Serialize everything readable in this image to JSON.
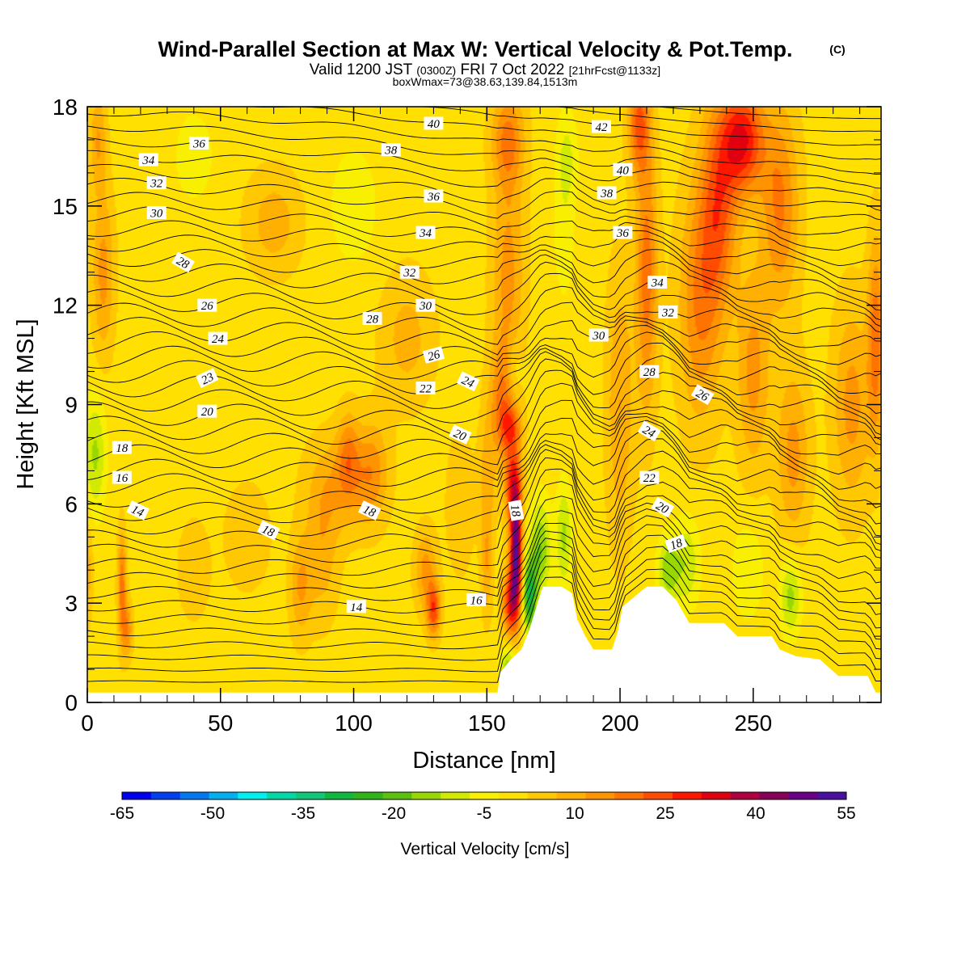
{
  "header": {
    "title": "Wind-Parallel Section at Max W: Vertical Velocity & Pot.Temp.",
    "copyright": "(C)",
    "valid_prefix": "Valid 1200 JST",
    "valid_utc": "(0300Z)",
    "valid_date": "FRI 7 Oct 2022",
    "forecast": "[21hrFcst@1133z]",
    "box_wmax": "boxWmax=73@38.63,139.84,1513m"
  },
  "chart_data": {
    "type": "heatmap",
    "title": "Wind-Parallel Section at Max W: Vertical Velocity & Pot.Temp.",
    "xlabel": "Distance [nm]",
    "ylabel": "Height [Kft MSL]",
    "xlim": [
      0,
      298
    ],
    "ylim": [
      0,
      18
    ],
    "x_ticks": [
      "0",
      "50",
      "100",
      "150",
      "200",
      "250"
    ],
    "y_ticks": [
      "0",
      "3",
      "6",
      "9",
      "12",
      "15",
      "18"
    ],
    "colorbar": {
      "label": "Vertical Velocity [cm/s]",
      "tick_labels": [
        "-65",
        "-50",
        "-35",
        "-20",
        "-5",
        "10",
        "25",
        "40",
        "55"
      ],
      "levels": [
        -65,
        -60,
        -55,
        -50,
        -45,
        -40,
        -35,
        -30,
        -25,
        -20,
        -15,
        -10,
        -5,
        0,
        5,
        10,
        15,
        20,
        25,
        30,
        35,
        40,
        45,
        50,
        55
      ],
      "colors": [
        "#0000f0",
        "#0040f0",
        "#0078f0",
        "#00b0f0",
        "#00f0f0",
        "#00d8a8",
        "#10c878",
        "#10b840",
        "#30b418",
        "#5cc010",
        "#98d800",
        "#d2ea00",
        "#f8f000",
        "#ffe000",
        "#ffc800",
        "#ffb000",
        "#ff9400",
        "#ff7400",
        "#ff4c00",
        "#ff1800",
        "#e00010",
        "#b00040",
        "#880058",
        "#6a0088",
        "#4a10a0"
      ]
    },
    "terrain": [
      [
        0,
        0.3
      ],
      [
        154,
        0.3
      ],
      [
        155,
        0.9
      ],
      [
        159,
        1.3
      ],
      [
        163,
        1.6
      ],
      [
        166,
        2.2
      ],
      [
        169,
        3.0
      ],
      [
        171,
        3.5
      ],
      [
        178,
        3.5
      ],
      [
        182,
        3.3
      ],
      [
        184,
        2.5
      ],
      [
        187,
        2.0
      ],
      [
        190,
        1.6
      ],
      [
        193,
        1.6
      ],
      [
        197,
        1.6
      ],
      [
        199,
        2.1
      ],
      [
        201,
        2.9
      ],
      [
        210,
        3.5
      ],
      [
        216,
        3.5
      ],
      [
        221,
        3.1
      ],
      [
        226,
        2.4
      ],
      [
        239,
        2.4
      ],
      [
        244,
        2.0
      ],
      [
        257,
        2.0
      ],
      [
        260,
        1.6
      ],
      [
        266,
        1.4
      ],
      [
        275,
        1.3
      ],
      [
        282,
        0.8
      ],
      [
        293,
        0.8
      ],
      [
        296,
        0.3
      ],
      [
        298,
        0.3
      ]
    ],
    "w_features": [
      {
        "x": 161,
        "y": 4.5,
        "w": 50,
        "sx": 2.2,
        "sy": 1.6
      },
      {
        "x": 160,
        "y": 6.5,
        "w": 30,
        "sx": 3,
        "sy": 1.2
      },
      {
        "x": 166,
        "y": 3.2,
        "w": -30,
        "sx": 2.5,
        "sy": 1.1
      },
      {
        "x": 170,
        "y": 4.6,
        "w": -18,
        "sx": 4,
        "sy": 1.5
      },
      {
        "x": 179,
        "y": 5,
        "w": -14,
        "sx": 3,
        "sy": 1.6
      },
      {
        "x": 156,
        "y": 9,
        "w": 18,
        "sx": 5,
        "sy": 1.8
      },
      {
        "x": 158,
        "y": 13,
        "w": 14,
        "sx": 6,
        "sy": 3
      },
      {
        "x": 158,
        "y": 17,
        "w": 18,
        "sx": 6,
        "sy": 1.5
      },
      {
        "x": 159,
        "y": 3,
        "w": 30,
        "sx": 3,
        "sy": 1
      },
      {
        "x": 158,
        "y": 1.1,
        "w": -16,
        "sx": 3,
        "sy": 0.6
      },
      {
        "x": 159,
        "y": 8.3,
        "w": 16,
        "sx": 4,
        "sy": 0.7
      },
      {
        "x": 160,
        "y": 10,
        "w": -8,
        "sx": 3,
        "sy": 1
      },
      {
        "x": 210,
        "y": 13,
        "w": 20,
        "sx": 4,
        "sy": 4
      },
      {
        "x": 207,
        "y": 17.5,
        "w": 22,
        "sx": 4,
        "sy": 1.5
      },
      {
        "x": 246,
        "y": 17,
        "w": 32,
        "sx": 8,
        "sy": 1.6
      },
      {
        "x": 237,
        "y": 15,
        "w": 22,
        "sx": 7,
        "sy": 3
      },
      {
        "x": 230,
        "y": 12,
        "w": 17,
        "sx": 8,
        "sy": 3.5
      },
      {
        "x": 260,
        "y": 15,
        "w": 18,
        "sx": 7,
        "sy": 3
      },
      {
        "x": 250,
        "y": 10,
        "w": 14,
        "sx": 6,
        "sy": 3
      },
      {
        "x": 265,
        "y": 7.5,
        "w": 14,
        "sx": 6,
        "sy": 2.5
      },
      {
        "x": 287,
        "y": 9,
        "w": 14,
        "sx": 7,
        "sy": 3
      },
      {
        "x": 296,
        "y": 11,
        "w": 20,
        "sx": 3,
        "sy": 3
      },
      {
        "x": 200,
        "y": 9,
        "w": 12,
        "sx": 5,
        "sy": 4
      },
      {
        "x": 218,
        "y": 4,
        "w": -16,
        "sx": 4,
        "sy": 1
      },
      {
        "x": 225,
        "y": 4.2,
        "w": -12,
        "sx": 5,
        "sy": 1.4
      },
      {
        "x": 264,
        "y": 3.2,
        "w": -15,
        "sx": 4,
        "sy": 1.2
      },
      {
        "x": 248,
        "y": 4,
        "w": -8,
        "sx": 6,
        "sy": 1.5
      },
      {
        "x": 180,
        "y": 16.5,
        "w": -9,
        "sx": 4,
        "sy": 1.5
      },
      {
        "x": 179,
        "y": 14,
        "w": -6,
        "sx": 4,
        "sy": 2
      },
      {
        "x": 3,
        "y": 7.5,
        "w": -14,
        "sx": 4,
        "sy": 1.8
      },
      {
        "x": 0,
        "y": 4,
        "w": 10,
        "sx": 2,
        "sy": 1.5
      },
      {
        "x": 6,
        "y": 13,
        "w": 14,
        "sx": 4,
        "sy": 2.5
      },
      {
        "x": 4,
        "y": 17,
        "w": 12,
        "sx": 3,
        "sy": 1.5
      },
      {
        "x": 13,
        "y": 3.5,
        "w": 20,
        "sx": 1.6,
        "sy": 1.6
      },
      {
        "x": 15,
        "y": 2.2,
        "w": 16,
        "sx": 2,
        "sy": 0.8
      },
      {
        "x": 130,
        "y": 2.8,
        "w": 25,
        "sx": 2.5,
        "sy": 0.8
      },
      {
        "x": 127,
        "y": 4,
        "w": 14,
        "sx": 4,
        "sy": 1.2
      },
      {
        "x": 80,
        "y": 3.5,
        "w": 12,
        "sx": 4,
        "sy": 1.5
      },
      {
        "x": 88,
        "y": 4.5,
        "w": 10,
        "sx": 6,
        "sy": 2
      },
      {
        "x": 98,
        "y": 7.5,
        "w": 13,
        "sx": 4,
        "sy": 1.3
      },
      {
        "x": 107,
        "y": 7,
        "w": 13,
        "sx": 6,
        "sy": 1.5
      },
      {
        "x": 95,
        "y": 6.6,
        "w": 11,
        "sx": 12,
        "sy": 1.5
      },
      {
        "x": 70,
        "y": 14.5,
        "w": 10,
        "sx": 10,
        "sy": 1.5
      },
      {
        "x": 120,
        "y": 11,
        "w": 9,
        "sx": 10,
        "sy": 2
      },
      {
        "x": 100,
        "y": 15,
        "w": -6,
        "sx": 10,
        "sy": 2
      },
      {
        "x": 40,
        "y": 16.5,
        "w": -6,
        "sx": 8,
        "sy": 1.5
      },
      {
        "x": 140,
        "y": 6,
        "w": 7,
        "sx": 5,
        "sy": 2
      },
      {
        "x": 150,
        "y": 6.5,
        "w": 10,
        "sx": 3,
        "sy": 2
      },
      {
        "x": 150,
        "y": 4,
        "w": 10,
        "sx": 2,
        "sy": 1.5
      },
      {
        "x": 40,
        "y": 4,
        "w": 6,
        "sx": 6,
        "sy": 1.5
      },
      {
        "x": 60,
        "y": 5,
        "w": 7,
        "sx": 8,
        "sy": 1.5
      }
    ],
    "theta_labels": [
      {
        "text": "36",
        "x": 42,
        "y": 16.9,
        "rot": 0
      },
      {
        "text": "34",
        "x": 23,
        "y": 16.4,
        "rot": 0
      },
      {
        "text": "32",
        "x": 26,
        "y": 15.7,
        "rot": 0
      },
      {
        "text": "30",
        "x": 26,
        "y": 14.8,
        "rot": 0
      },
      {
        "text": "28",
        "x": 36,
        "y": 13.3,
        "rot": 30
      },
      {
        "text": "26",
        "x": 45,
        "y": 12.0,
        "rot": 0
      },
      {
        "text": "24",
        "x": 49,
        "y": 11.0,
        "rot": 0
      },
      {
        "text": "23",
        "x": 45,
        "y": 9.8,
        "rot": -25
      },
      {
        "text": "20",
        "x": 45,
        "y": 8.8,
        "rot": 0
      },
      {
        "text": "18",
        "x": 13,
        "y": 7.7,
        "rot": 0
      },
      {
        "text": "16",
        "x": 13,
        "y": 6.8,
        "rot": 0
      },
      {
        "text": "14",
        "x": 19,
        "y": 5.8,
        "rot": 25
      },
      {
        "text": "18",
        "x": 68,
        "y": 5.2,
        "rot": 25
      },
      {
        "text": "18",
        "x": 106,
        "y": 5.8,
        "rot": 25
      },
      {
        "text": "14",
        "x": 101,
        "y": 2.9,
        "rot": 0
      },
      {
        "text": "16",
        "x": 146,
        "y": 3.1,
        "rot": 0
      },
      {
        "text": "40",
        "x": 130,
        "y": 17.5,
        "rot": 0
      },
      {
        "text": "38",
        "x": 114,
        "y": 16.7,
        "rot": 0
      },
      {
        "text": "36",
        "x": 130,
        "y": 15.3,
        "rot": 0
      },
      {
        "text": "34",
        "x": 127,
        "y": 14.2,
        "rot": 0
      },
      {
        "text": "32",
        "x": 121,
        "y": 13.0,
        "rot": 0
      },
      {
        "text": "30",
        "x": 127,
        "y": 12.0,
        "rot": 0
      },
      {
        "text": "28",
        "x": 107,
        "y": 11.6,
        "rot": 0
      },
      {
        "text": "26",
        "x": 130,
        "y": 10.5,
        "rot": -15
      },
      {
        "text": "22",
        "x": 127,
        "y": 9.5,
        "rot": 0
      },
      {
        "text": "24",
        "x": 143,
        "y": 9.7,
        "rot": 25
      },
      {
        "text": "20",
        "x": 140,
        "y": 8.1,
        "rot": 25
      },
      {
        "text": "18",
        "x": 161,
        "y": 5.8,
        "rot": 80
      },
      {
        "text": "42",
        "x": 193,
        "y": 17.4,
        "rot": 0
      },
      {
        "text": "40",
        "x": 201,
        "y": 16.1,
        "rot": 0
      },
      {
        "text": "38",
        "x": 195,
        "y": 15.4,
        "rot": 0
      },
      {
        "text": "36",
        "x": 201,
        "y": 14.2,
        "rot": 0
      },
      {
        "text": "34",
        "x": 214,
        "y": 12.7,
        "rot": 0
      },
      {
        "text": "32",
        "x": 218,
        "y": 11.8,
        "rot": 0
      },
      {
        "text": "30",
        "x": 192,
        "y": 11.1,
        "rot": 0
      },
      {
        "text": "28",
        "x": 211,
        "y": 10.0,
        "rot": 0
      },
      {
        "text": "26",
        "x": 231,
        "y": 9.3,
        "rot": 30
      },
      {
        "text": "24",
        "x": 211,
        "y": 8.2,
        "rot": 30
      },
      {
        "text": "22",
        "x": 211,
        "y": 6.8,
        "rot": 0
      },
      {
        "text": "20",
        "x": 216,
        "y": 5.9,
        "rot": 30
      },
      {
        "text": "18",
        "x": 221,
        "y": 4.8,
        "rot": -20
      }
    ]
  }
}
